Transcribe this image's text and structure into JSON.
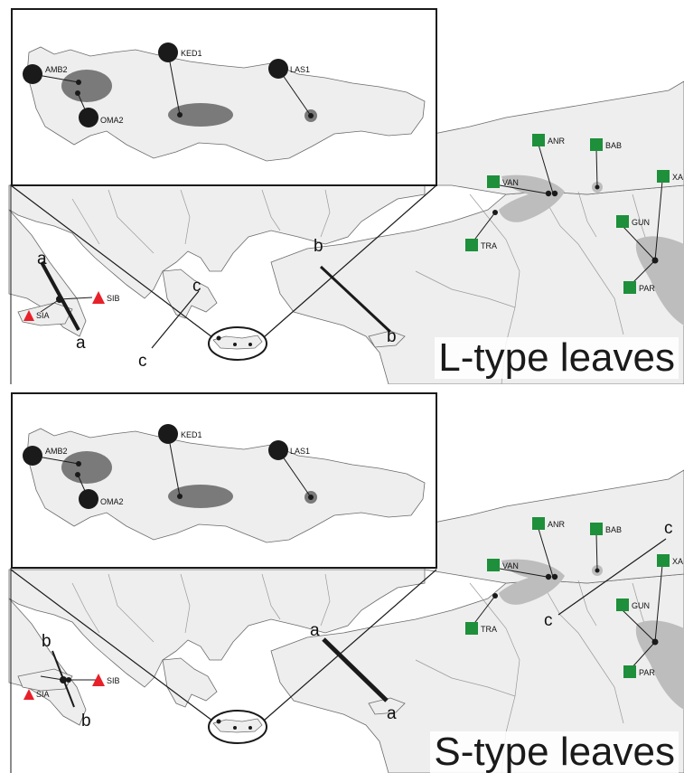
{
  "panels": [
    {
      "id": "top",
      "title": "L-type leaves",
      "lines": [
        "a",
        "b",
        "c"
      ],
      "crete_sites": [
        "AMB2",
        "OMA2",
        "KED1",
        "LAS1"
      ],
      "east_sites": [
        "ANR",
        "BAB",
        "VAN",
        "TRA",
        "GUN",
        "PAR",
        "XA"
      ],
      "west_sites": [
        "SIA",
        "SIB"
      ]
    },
    {
      "id": "bottom",
      "title": "S-type leaves",
      "lines": [
        "a",
        "b",
        "c"
      ],
      "crete_sites": [
        "AMB2",
        "OMA2",
        "KED1",
        "LAS1"
      ],
      "east_sites": [
        "ANR",
        "BAB",
        "VAN",
        "TRA",
        "GUN",
        "PAR",
        "XA"
      ],
      "west_sites": [
        "SIA",
        "SIB"
      ]
    }
  ],
  "colors": {
    "land": "#eeeeee",
    "sea": "#ffffff",
    "coast": "#6b6b6b",
    "border": "#9a9a9a",
    "density_light": "#bdbdbd",
    "density_dark": "#7a7a7a",
    "crete_marker": "#1a1a1a",
    "east_marker": "#1e8f3a",
    "west_marker": "#e8202a"
  },
  "legend_icons": {
    "crete": "black-circle",
    "east": "green-square",
    "west": "red-triangle"
  }
}
